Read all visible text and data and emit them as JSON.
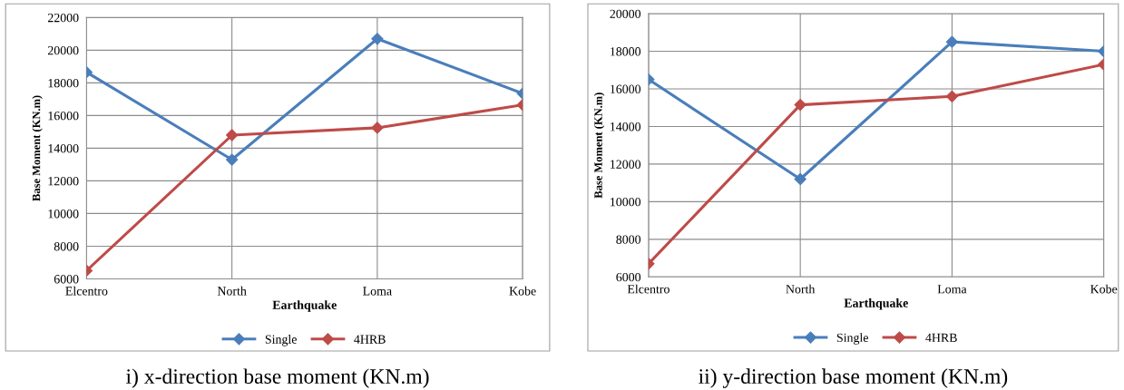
{
  "chart_data": [
    {
      "type": "line",
      "xlabel": "Earthquake",
      "ylabel": "Base Moment (KN.m)",
      "categories": [
        "Elcentro",
        "North",
        "Loma",
        "Kobe"
      ],
      "series": [
        {
          "name": "Single",
          "color": "#4a7ebb",
          "values": [
            18650,
            13300,
            20700,
            17350
          ]
        },
        {
          "name": "4HRB",
          "color": "#be4b48",
          "values": [
            6500,
            14800,
            15250,
            16650
          ]
        }
      ],
      "ylim": [
        6000,
        22000
      ],
      "yticks": [
        6000,
        8000,
        10000,
        12000,
        14000,
        16000,
        18000,
        20000,
        22000
      ],
      "grid": true,
      "legend": "bottom",
      "marker": "diamond",
      "line_style": "solid",
      "annotations": [
        "i) x-direction base moment (KN.m)"
      ]
    },
    {
      "type": "line",
      "xlabel": "Earthquake",
      "ylabel": "Base Moment (KN.m)",
      "categories": [
        "Elcentro",
        "North",
        "Loma",
        "Kobe"
      ],
      "series": [
        {
          "name": "Single",
          "color": "#4a7ebb",
          "values": [
            16500,
            11200,
            18500,
            18000
          ]
        },
        {
          "name": "4HRB",
          "color": "#be4b48",
          "values": [
            6700,
            15150,
            15600,
            17300
          ]
        }
      ],
      "ylim": [
        6000,
        20000
      ],
      "yticks": [
        6000,
        8000,
        10000,
        12000,
        14000,
        16000,
        18000,
        20000
      ],
      "grid": true,
      "legend": "bottom",
      "marker": "diamond",
      "line_style": "solid",
      "annotations": [
        "ii) y-direction base moment (KN.m)"
      ]
    }
  ]
}
